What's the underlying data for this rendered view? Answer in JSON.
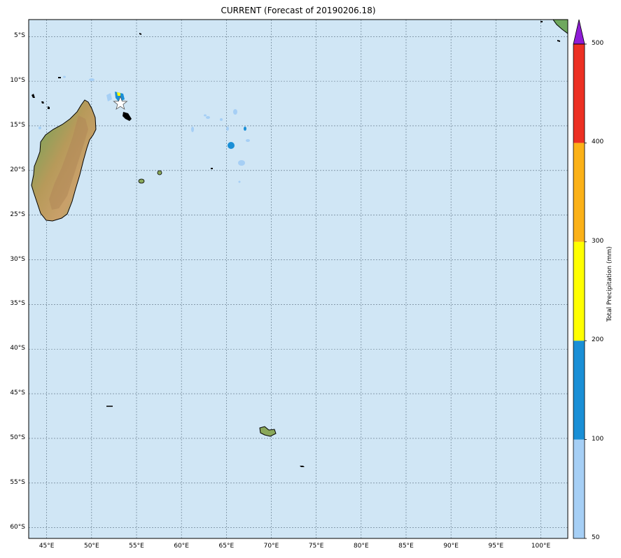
{
  "title": "CURRENT (Forecast of 20190206.18)",
  "map": {
    "lon_range": [
      43,
      103
    ],
    "lat_range": [
      -61.2,
      -3.1
    ],
    "ocean_color": "#d0e6f5",
    "latitude_labels": [
      {
        "lat": -5,
        "label": "5°S"
      },
      {
        "lat": -10,
        "label": "10°S"
      },
      {
        "lat": -15,
        "label": "15°S"
      },
      {
        "lat": -20,
        "label": "20°S"
      },
      {
        "lat": -25,
        "label": "25°S"
      },
      {
        "lat": -30,
        "label": "30°S"
      },
      {
        "lat": -35,
        "label": "35°S"
      },
      {
        "lat": -40,
        "label": "40°S"
      },
      {
        "lat": -45,
        "label": "45°S"
      },
      {
        "lat": -50,
        "label": "50°S"
      },
      {
        "lat": -55,
        "label": "55°S"
      },
      {
        "lat": -60,
        "label": "60°S"
      }
    ],
    "longitude_labels": [
      {
        "lon": 45,
        "label": "45°E"
      },
      {
        "lon": 50,
        "label": "50°E"
      },
      {
        "lon": 55,
        "label": "55°E"
      },
      {
        "lon": 60,
        "label": "60°E"
      },
      {
        "lon": 65,
        "label": "65°E"
      },
      {
        "lon": 70,
        "label": "70°E"
      },
      {
        "lon": 75,
        "label": "75°E"
      },
      {
        "lon": 80,
        "label": "80°E"
      },
      {
        "lon": 85,
        "label": "85°E"
      },
      {
        "lon": 90,
        "label": "90°E"
      },
      {
        "lon": 95,
        "label": "95°E"
      },
      {
        "lon": 100,
        "label": "100°E"
      }
    ],
    "storm_marker": {
      "lon": 53.2,
      "lat": -12.5
    }
  },
  "colorbar": {
    "title": "Total Precipitation (mm)",
    "levels": [
      {
        "from": 50,
        "to": 100,
        "color": "#a6cff5",
        "label": "50"
      },
      {
        "from": 100,
        "to": 200,
        "color": "#1a8fd6",
        "label": "100"
      },
      {
        "from": 200,
        "to": 300,
        "color": "#ffff00",
        "label": "200"
      },
      {
        "from": 300,
        "to": 400,
        "color": "#fbb117",
        "label": "300"
      },
      {
        "from": 400,
        "to": 500,
        "color": "#ec3023",
        "label": "400"
      }
    ],
    "top_label": "500",
    "overflow_color": "#8f1cd6"
  }
}
